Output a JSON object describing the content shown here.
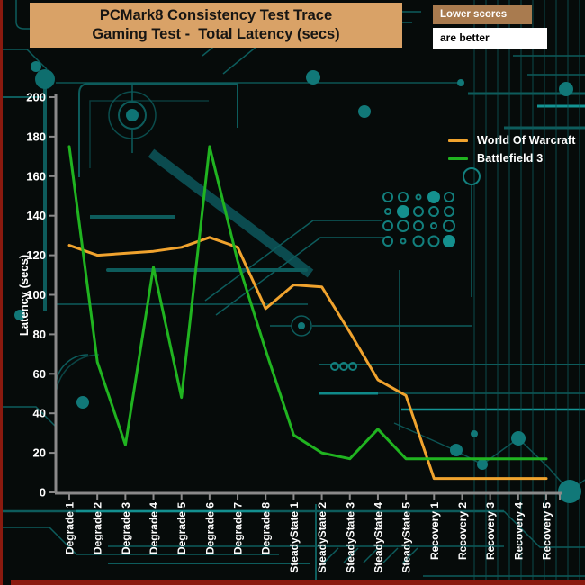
{
  "header": {
    "title_line1": "PCMark8 Consistency Test Trace",
    "title_line2": "Gaming Test -  Total Latency (secs)",
    "note_line1": "Lower scores",
    "note_line2": "are better"
  },
  "colors": {
    "background": "#060B0A",
    "banner_tan": "#D9A267",
    "note_brown": "#A97B4F",
    "note_white": "#FFFFFF",
    "red_border": "#8A1A0F",
    "circuit_teal": "#0D5C5C",
    "axis_gray": "#8A8A8A",
    "label_white": "#FFFFFF",
    "wow_orange": "#F0A32E",
    "bf3_green": "#20B420"
  },
  "chart_data": {
    "type": "line",
    "title": "PCMark8 Consistency Test Trace Gaming Test - Total Latency (secs)",
    "xlabel": "",
    "ylabel": "Latency (secs)",
    "ylim": [
      0,
      200
    ],
    "ytick_step": 20,
    "grid": false,
    "legend_position": "upper right",
    "categories": [
      "Degrade 1",
      "Degrade 2",
      "Degrade 3",
      "Degrade 4",
      "Degrade 5",
      "Degrade 6",
      "Degrade 7",
      "Degrade 8",
      "SteadyState 1",
      "SteadyState 2",
      "SteadyState 3",
      "SteadyState 4",
      "SteadyState 5",
      "Recovery 1",
      "Recovery 2",
      "Recovery 3",
      "Recovery 4",
      "Recovery 5"
    ],
    "series": [
      {
        "name": "World Of Warcraft",
        "color": "#F0A32E",
        "values": [
          125,
          120,
          121,
          122,
          124,
          129,
          124,
          93,
          105,
          104,
          81,
          57,
          49,
          7,
          7,
          7,
          7,
          7
        ]
      },
      {
        "name": "Battlefield 3",
        "color": "#20B420",
        "values": [
          175,
          66,
          24,
          114,
          48,
          175,
          117,
          72,
          29,
          20,
          17,
          32,
          17,
          17,
          17,
          17,
          17,
          17
        ]
      }
    ]
  }
}
